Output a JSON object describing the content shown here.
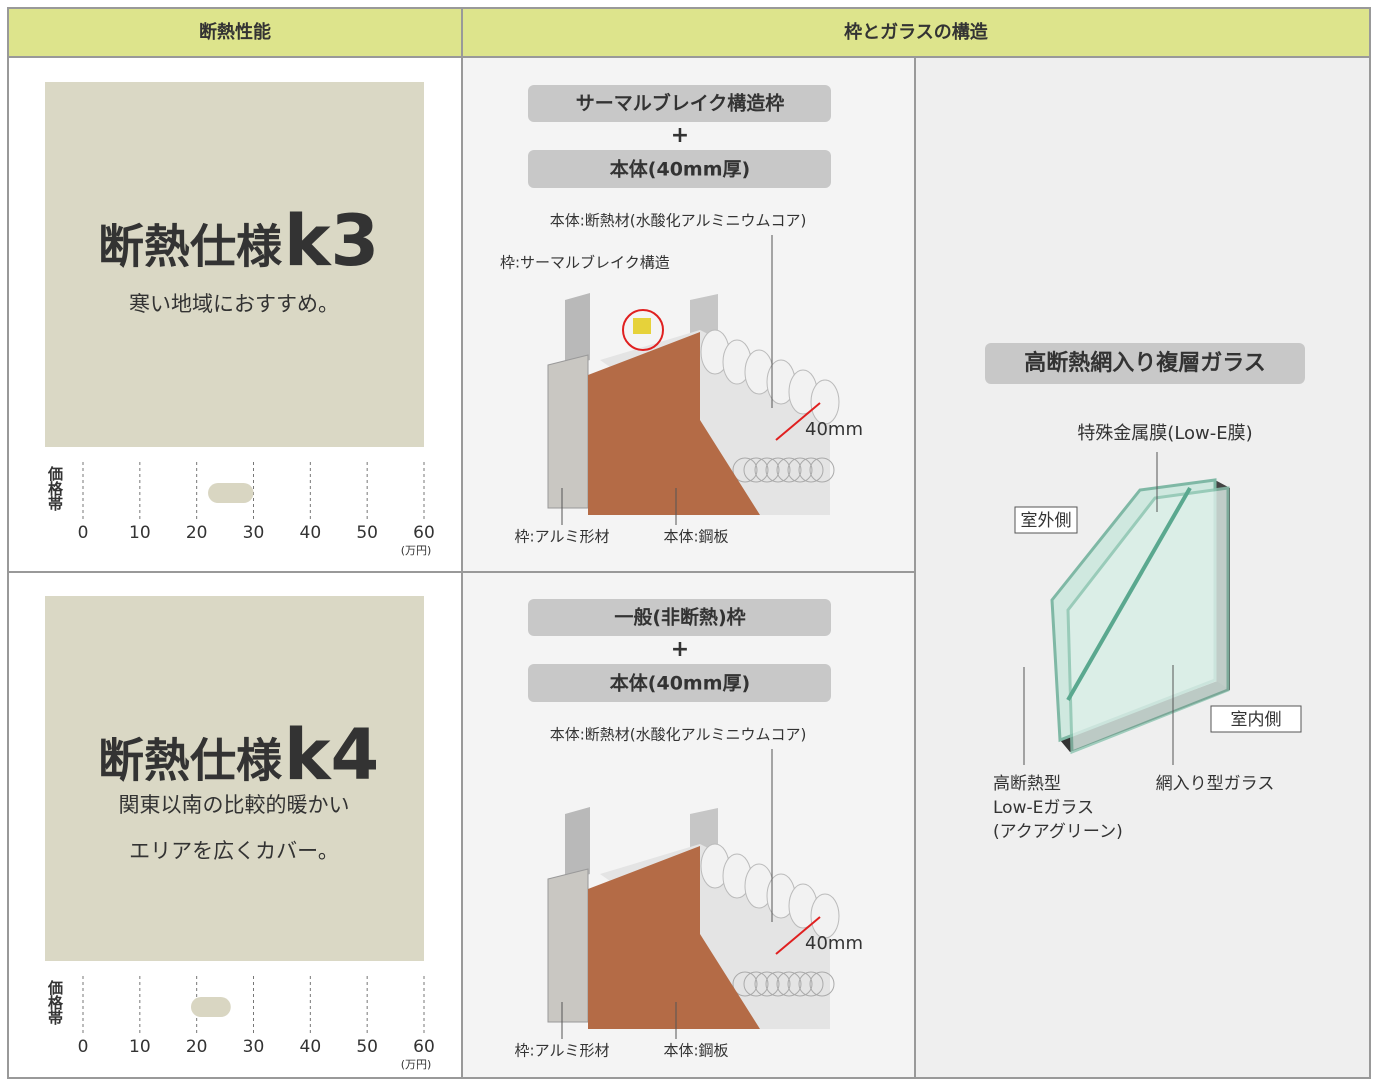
{
  "header": {
    "performance": "断熱性能",
    "structure": "枠とガラスの構造"
  },
  "price_scale": {
    "label": "価格帯",
    "ticks": [
      0,
      10,
      20,
      30,
      40,
      50,
      60
    ],
    "unit": "(万円)"
  },
  "rows": [
    {
      "spec": "断熱仕様",
      "grade": "k3",
      "description": [
        "寒い地域におすすめ。"
      ],
      "price_band": [
        22,
        30
      ],
      "frame": "サーマルブレイク構造枠",
      "plus": "+",
      "body": "本体(40mm厚)",
      "callouts": {
        "core": "本体:断熱材(水酸化アルミニウムコア)",
        "thermal_break": "枠:サーマルブレイク構造",
        "frame_material": "枠:アルミ形材",
        "steel": "本体:鋼板",
        "thickness": "40mm"
      }
    },
    {
      "spec": "断熱仕様",
      "grade": "k4",
      "description": [
        "関東以南の比較的暖かい",
        "エリアを広くカバー。"
      ],
      "price_band": [
        19,
        26
      ],
      "frame": "一般(非断熱)枠",
      "plus": "+",
      "body": "本体(40mm厚)",
      "callouts": {
        "core": "本体:断熱材(水酸化アルミニウムコア)",
        "frame_material": "枠:アルミ形材",
        "steel": "本体:鋼板",
        "thickness": "40mm"
      }
    }
  ],
  "glass": {
    "title": "高断熱網入り複層ガラス",
    "low_e_film": "特殊金属膜(Low-E膜)",
    "outside": "室外側",
    "inside": "室内側",
    "low_e_glass": [
      "高断熱型",
      "Low-Eガラス",
      "(アクアグリーン)"
    ],
    "wired_glass": "網入り型ガラス"
  }
}
